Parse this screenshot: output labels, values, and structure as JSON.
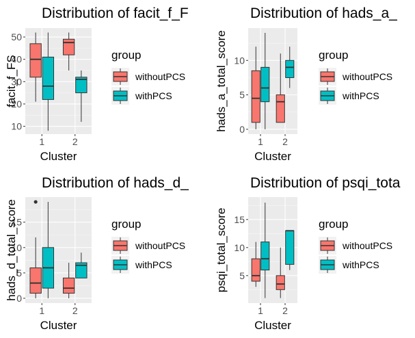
{
  "legend": {
    "title": "group",
    "items": [
      {
        "label": "withoutPCS",
        "color": "#F8766D"
      },
      {
        "label": "withPCS",
        "color": "#00BFC4"
      }
    ]
  },
  "chart_data": [
    {
      "type": "boxplot",
      "title": "Distribution of facit_f_F",
      "xlabel": "Cluster",
      "ylabel": "facit_f_FS",
      "categories": [
        "1",
        "2"
      ],
      "ylim": [
        6.5,
        54
      ],
      "yticks": [
        10,
        20,
        30,
        40,
        50
      ],
      "series": [
        {
          "name": "withoutPCS",
          "boxes": [
            {
              "category": "1",
              "min": 21,
              "q1": 32,
              "median": 40,
              "q3": 47,
              "max": 52,
              "outliers": []
            },
            {
              "category": "2",
              "min": 35,
              "q1": 42,
              "median": 47.5,
              "q3": 49,
              "max": 52,
              "outliers": []
            }
          ]
        },
        {
          "name": "withPCS",
          "boxes": [
            {
              "category": "1",
              "min": 8,
              "q1": 22,
              "median": 28,
              "q3": 41,
              "max": 52,
              "outliers": []
            },
            {
              "category": "2",
              "min": 12,
              "q1": 25,
              "median": 31,
              "q3": 32,
              "max": 35,
              "outliers": []
            }
          ]
        }
      ]
    },
    {
      "type": "boxplot",
      "title": "Distribution of hads_a_",
      "xlabel": "Cluster",
      "ylabel": "hads_a_total_score",
      "categories": [
        "1",
        "2"
      ],
      "ylim": [
        -0.7,
        14.7
      ],
      "yticks": [
        0,
        5,
        10
      ],
      "series": [
        {
          "name": "withoutPCS",
          "boxes": [
            {
              "category": "1",
              "min": 0,
              "q1": 1,
              "median": 4.5,
              "q3": 8.5,
              "max": 12,
              "outliers": []
            },
            {
              "category": "2",
              "min": 1,
              "q1": 1,
              "median": 4,
              "q3": 5,
              "max": 11,
              "outliers": []
            }
          ]
        },
        {
          "name": "withPCS",
          "boxes": [
            {
              "category": "1",
              "min": 0,
              "q1": 4,
              "median": 6,
              "q3": 9,
              "max": 14,
              "outliers": []
            },
            {
              "category": "2",
              "min": 6,
              "q1": 7.5,
              "median": 9,
              "q3": 10,
              "max": 12,
              "outliers": []
            }
          ]
        }
      ]
    },
    {
      "type": "boxplot",
      "title": "Distribution of hads_d_",
      "xlabel": "Cluster",
      "ylabel": "hads_d_total_score",
      "categories": [
        "1",
        "2"
      ],
      "ylim": [
        -0.95,
        19.95
      ],
      "yticks": [
        0,
        5,
        10,
        15
      ],
      "series": [
        {
          "name": "withoutPCS",
          "boxes": [
            {
              "category": "1",
              "min": 0,
              "q1": 1,
              "median": 3,
              "q3": 6,
              "max": 12,
              "outliers": [
                19
              ]
            },
            {
              "category": "2",
              "min": 0,
              "q1": 1,
              "median": 2,
              "q3": 4,
              "max": 7,
              "outliers": []
            }
          ]
        },
        {
          "name": "withPCS",
          "boxes": [
            {
              "category": "1",
              "min": 0,
              "q1": 2,
              "median": 6,
              "q3": 10,
              "max": 19,
              "outliers": []
            },
            {
              "category": "2",
              "min": 4,
              "q1": 4,
              "median": 6.5,
              "q3": 7,
              "max": 9,
              "outliers": []
            }
          ]
        }
      ]
    },
    {
      "type": "boxplot",
      "title": "Distribution of psqi_tota",
      "xlabel": "Cluster",
      "ylabel": "psqi_total_score",
      "categories": [
        "1",
        "2"
      ],
      "ylim": [
        0.1,
        19
      ],
      "yticks": [
        5,
        10,
        15
      ],
      "series": [
        {
          "name": "withoutPCS",
          "boxes": [
            {
              "category": "1",
              "min": 3,
              "q1": 4,
              "median": 5,
              "q3": 8,
              "max": 11,
              "outliers": []
            },
            {
              "category": "2",
              "min": 1,
              "q1": 2.5,
              "median": 3.5,
              "q3": 5,
              "max": 10,
              "outliers": []
            }
          ]
        },
        {
          "name": "withPCS",
          "boxes": [
            {
              "category": "1",
              "min": 1,
              "q1": 6,
              "median": 8,
              "q3": 11,
              "max": 18,
              "outliers": []
            },
            {
              "category": "2",
              "min": 6,
              "q1": 7,
              "median": 13,
              "q3": 13,
              "max": 13,
              "outliers": []
            }
          ]
        }
      ]
    }
  ]
}
